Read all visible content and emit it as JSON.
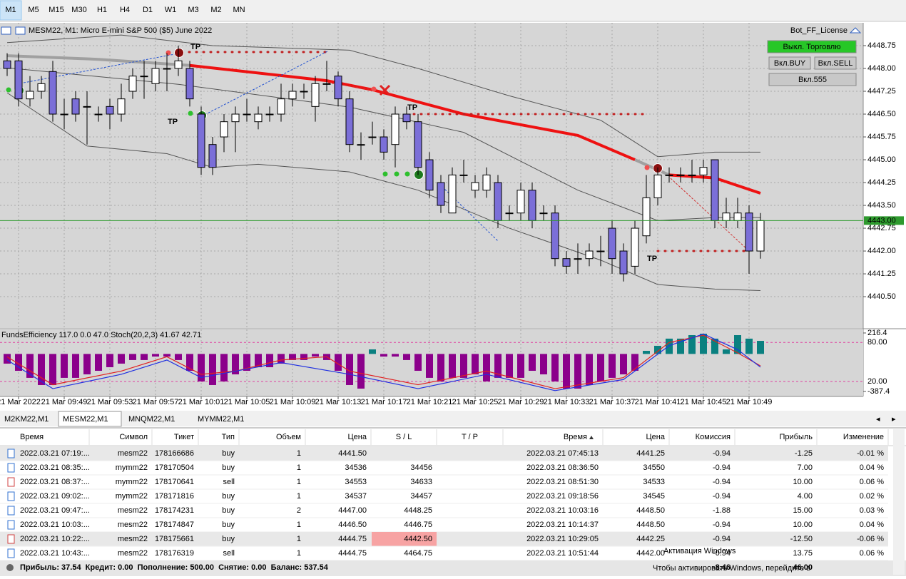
{
  "toolbar": {
    "timeframes": [
      "M1",
      "M5",
      "M15",
      "M30",
      "H1",
      "H4",
      "D1",
      "W1",
      "M3",
      "M2",
      "MN"
    ],
    "active": 0
  },
  "chart_header": {
    "title": "MESM22, M1:  Micro E-mini S&P 500 ($5) June 2022",
    "license": "Bot_FF_License"
  },
  "buttons": [
    "Выкл. Торговлю",
    "Вкл.BUY",
    "Вкл.SELL",
    "Вкл.555"
  ],
  "chart_data": [
    {
      "type": "candlestick",
      "categories": [
        null,
        "21 Mar 2022",
        null,
        null,
        null,
        "21 Mar 09:49",
        null,
        null,
        null,
        "21 Mar 09:53",
        null,
        null,
        null,
        "21 Mar 09:57",
        null,
        null,
        null,
        "21 Mar 10:01",
        null,
        null,
        null,
        "21 Mar 10:05",
        null,
        null,
        null,
        "21 Mar 10:09",
        null,
        null,
        null,
        "21 Mar 10:13",
        null,
        null,
        null,
        "21 Mar 10:17",
        null,
        null,
        null,
        "21 Mar 10:21",
        null,
        null,
        null,
        "21 Mar 10:25",
        null,
        null,
        null,
        "21 Mar 10:29",
        null,
        null,
        null,
        "21 Mar 10:33",
        null,
        null,
        null,
        "21 Mar 10:37",
        null,
        null,
        null,
        "21 Mar 10:41",
        null,
        null,
        null,
        "21 Mar 10:45",
        null,
        null,
        null,
        "21 Mar 10:49",
        null
      ],
      "open": [
        4448.25,
        4448.25,
        4447.0,
        4447.25,
        4447.9,
        4446.5,
        4447.0,
        4446.75,
        4446.5,
        4446.75,
        4446.5,
        4447.25,
        4447.75,
        4447.5,
        4448.0,
        4448.0,
        4448.0,
        4446.5,
        4445.5,
        4445.75,
        4446.25,
        4446.5,
        4446.25,
        4446.5,
        4446.5,
        4447.0,
        4447.25,
        4446.75,
        4447.5,
        4447.75,
        4447.0,
        4445.5,
        4445.75,
        4445.75,
        4445.5,
        4446.5,
        4446.25,
        4445.0,
        4444.25,
        4443.25,
        4444.5,
        4444.0,
        4444.0,
        4444.25,
        4443.25,
        4443.25,
        4444.0,
        4443.25,
        4443.25,
        4441.75,
        4441.75,
        4441.75,
        4442.0,
        4442.75,
        4442.0,
        4441.5,
        4442.5,
        4443.75,
        4444.5,
        4444.5,
        4444.5,
        4444.5,
        4445.0,
        4443.0,
        4443.0,
        4443.25,
        4442.0
      ],
      "high": [
        4448.5,
        4448.5,
        4447.75,
        4447.75,
        4448.25,
        4447.0,
        4447.25,
        4447.25,
        4446.75,
        4447.0,
        4447.5,
        4448.0,
        4448.25,
        4448.25,
        4448.5,
        4448.75,
        4448.25,
        4446.75,
        4445.75,
        4446.5,
        4446.75,
        4447.0,
        4446.75,
        4446.75,
        4447.5,
        4447.5,
        4447.5,
        4447.75,
        4448.25,
        4447.9,
        4447.25,
        4445.9,
        4446.25,
        4446.0,
        4446.75,
        4446.75,
        4446.5,
        4445.25,
        4444.5,
        4444.75,
        4445.0,
        4444.5,
        4444.75,
        4444.5,
        4443.5,
        4444.25,
        4444.25,
        4443.5,
        4443.5,
        4442.0,
        4442.25,
        4442.25,
        4442.5,
        4443.0,
        4442.25,
        4443.0,
        4444.5,
        4444.75,
        4444.75,
        4444.75,
        4445.0,
        4445.0,
        4445.0,
        4443.75,
        4443.75,
        4443.5,
        4443.25
      ],
      "low": [
        4447.75,
        4446.75,
        4446.75,
        4447.0,
        4446.25,
        4446.0,
        4446.25,
        4445.5,
        4446.25,
        4446.0,
        4446.25,
        4447.0,
        4447.0,
        4447.25,
        4447.25,
        4447.75,
        4446.75,
        4444.5,
        4444.5,
        4445.25,
        4445.25,
        4446.25,
        4446.0,
        4446.25,
        4446.25,
        4446.75,
        4447.0,
        4446.25,
        4447.25,
        4446.75,
        4445.25,
        4445.0,
        4445.5,
        4445.0,
        4444.75,
        4446.0,
        4444.5,
        4443.75,
        4443.25,
        4443.25,
        4444.25,
        4443.75,
        4443.75,
        4442.75,
        4443.0,
        4443.0,
        4442.75,
        4443.0,
        4441.5,
        4441.25,
        4441.25,
        4441.5,
        4441.5,
        4441.25,
        4441.0,
        4441.25,
        4442.25,
        4443.5,
        4444.25,
        4444.25,
        4444.25,
        4444.25,
        4442.75,
        4442.75,
        4442.75,
        4441.25,
        4441.75
      ],
      "close": [
        4448.0,
        4447.0,
        4447.25,
        4447.5,
        4446.5,
        4446.5,
        4446.5,
        4446.75,
        4446.5,
        4446.5,
        4447.0,
        4447.75,
        4447.75,
        4448.0,
        4448.0,
        4448.25,
        4447.0,
        4444.75,
        4444.75,
        4446.25,
        4446.5,
        4446.5,
        4446.5,
        4446.5,
        4447.0,
        4447.25,
        4447.25,
        4447.5,
        4447.5,
        4447.0,
        4445.5,
        4445.5,
        4445.75,
        4445.25,
        4446.5,
        4446.25,
        4444.75,
        4444.0,
        4443.5,
        4444.5,
        4444.5,
        4444.25,
        4444.5,
        4443.0,
        4443.25,
        4444.0,
        4443.0,
        4443.25,
        4441.75,
        4441.5,
        4441.75,
        4442.0,
        4442.0,
        4441.75,
        4441.25,
        4442.75,
        4443.75,
        4444.5,
        4444.5,
        4444.5,
        4444.5,
        4444.75,
        4443.0,
        4443.25,
        4443.25,
        4442.0,
        4443.0
      ],
      "down_color": "#7b6fd8",
      "up_color": "#ffffff",
      "ylim": [
        4439.47,
        4449.5
      ],
      "yticks": [
        4448.75,
        {
          "value": 4448.0,
          "label": "4448.00"
        },
        4447.25,
        {
          "value": 4446.5,
          "label": "4446.50"
        },
        4445.75,
        {
          "value": 4445.0,
          "label": "4445.00"
        },
        4444.25,
        {
          "value": 4443.5,
          "label": "4443.50"
        },
        4442.75,
        {
          "value": 4442.0,
          "label": "4442.00"
        },
        4441.25,
        {
          "value": 4440.5,
          "label": "4440.50"
        }
      ],
      "grid": true,
      "lines": [
        {
          "color": "#a0a0a0",
          "width": 4,
          "x": [
            0,
            8,
            16
          ],
          "values": [
            4448.42,
            4448.3,
            4448.1
          ]
        },
        {
          "color": "#ee1111",
          "width": 4,
          "x": [
            16,
            28,
            32,
            40,
            50,
            55
          ],
          "values": [
            4448.1,
            4447.6,
            4447.3,
            4446.5,
            4445.8,
            4445.0
          ]
        },
        {
          "color": "#a0a0a0",
          "width": 4,
          "x": [
            55,
            58
          ],
          "values": [
            4445.0,
            4444.5
          ]
        },
        {
          "color": "#ee1111",
          "width": 4,
          "x": [
            58,
            62,
            66
          ],
          "values": [
            4444.5,
            4444.4,
            4443.9
          ]
        },
        {
          "color": "#555555",
          "width": 1,
          "x": [
            0,
            10,
            18,
            30,
            36,
            44,
            52,
            57,
            62,
            66
          ],
          "values": [
            4448.85,
            4449.1,
            4448.75,
            4448.6,
            4448.0,
            4447.1,
            4446.3,
            4445.1,
            4445.25,
            4445.25
          ]
        },
        {
          "color": "#555555",
          "width": 1,
          "x": [
            0,
            15,
            30,
            40,
            50,
            57,
            62,
            66
          ],
          "values": [
            4448.02,
            4447.48,
            4446.73,
            4445.9,
            4444.0,
            4443.0,
            4443.1,
            4443.1
          ]
        },
        {
          "color": "#555555",
          "width": 1,
          "x": [
            0,
            7,
            14,
            18,
            22,
            30,
            36,
            44,
            52,
            57,
            62,
            66
          ],
          "values": [
            4447.2,
            4445.45,
            4445.2,
            4444.75,
            4444.85,
            4444.6,
            4444.0,
            4442.75,
            4441.7,
            4440.9,
            4440.75,
            4440.7
          ]
        }
      ],
      "current_price": {
        "value": 4443.0,
        "label": "4443.00",
        "color": "#2e9a2e"
      },
      "annotations": [
        "TP",
        "TP",
        "TP",
        "TP"
      ]
    },
    {
      "type": "bar",
      "title": "FundsEfficiency 117.0 0.0 47.0 Stoch(20,2,3) 41.67 42.71",
      "values": [
        -100,
        -174,
        -247,
        -321,
        -321,
        -247,
        -247,
        -211,
        -174,
        -137,
        -100,
        -63,
        -63,
        -27,
        -27,
        -63,
        -174,
        -284,
        -321,
        -284,
        -211,
        -174,
        -137,
        -137,
        -100,
        -63,
        -63,
        -27,
        -63,
        -174,
        -321,
        -358,
        47,
        -27,
        -27,
        -63,
        -174,
        -247,
        -284,
        -247,
        -247,
        -211,
        -284,
        -247,
        -247,
        -247,
        -174,
        -211,
        -284,
        -358,
        -358,
        -321,
        -284,
        -247,
        -211,
        -174,
        32,
        84,
        158,
        158,
        194,
        209,
        158,
        47,
        194,
        158,
        135
      ],
      "color": "#8b008b",
      "up_color": "#0a8080",
      "ylim": [
        -439,
        253
      ],
      "yticks": [
        216.4,
        -387.4
      ],
      "y2lim": [
        -3,
        100
      ],
      "y2ticks": [
        {
          "value": 80,
          "label": "80.00"
        },
        {
          "value": 20,
          "label": "20.00"
        }
      ],
      "series": [
        {
          "color": "#e02020",
          "axis": "y2",
          "x": [
            0,
            4,
            10,
            14,
            17,
            20,
            24,
            28,
            30,
            36,
            42,
            48,
            54,
            58,
            61,
            64,
            66
          ],
          "values": [
            58,
            15,
            36,
            58,
            31,
            36,
            53,
            58,
            36,
            15,
            36,
            9,
            26,
            80,
            91,
            64,
            44
          ]
        },
        {
          "color": "#2030e0",
          "axis": "y2",
          "x": [
            0,
            4,
            10,
            14,
            17,
            24,
            30,
            36,
            42,
            48,
            54,
            58,
            61,
            64,
            66
          ],
          "values": [
            53,
            9,
            31,
            53,
            26,
            49,
            31,
            9,
            31,
            6,
            23,
            75,
            93,
            69,
            42
          ]
        }
      ]
    }
  ],
  "tabs": {
    "items": [
      "M2KM22,M1",
      "MESM22,M1",
      "MNQM22,M1",
      "MYMM22,M1"
    ],
    "active": 1
  },
  "table": {
    "columns": [
      "Время",
      "Символ",
      "Тикет",
      "Тип",
      "Объем",
      "Цена",
      "S / L",
      "T / P",
      "Время",
      "Цена",
      "Комиссия",
      "Прибыль",
      "Изменение"
    ],
    "rows": [
      [
        "2022.03.21 07:19:...",
        "mesm22",
        "178166686",
        "buy",
        "1",
        "4441.50",
        null,
        null,
        "2022.03.21 07:45:13",
        "4441.25",
        "-0.94",
        "-1.25",
        "-0.01 %"
      ],
      [
        "2022.03.21 08:35:...",
        "mymm22",
        "178170504",
        "buy",
        "1",
        "34536",
        "34456",
        null,
        "2022.03.21 08:36:50",
        "34550",
        "-0.94",
        "7.00",
        "0.04 %"
      ],
      [
        "2022.03.21 08:37:...",
        "mymm22",
        "178170641",
        "sell",
        "1",
        "34553",
        "34633",
        null,
        "2022.03.21 08:51:30",
        "34533",
        "-0.94",
        "10.00",
        "0.06 %"
      ],
      [
        "2022.03.21 09:02:...",
        "mymm22",
        "178171816",
        "buy",
        "1",
        "34537",
        "34457",
        null,
        "2022.03.21 09:18:56",
        "34545",
        "-0.94",
        "4.00",
        "0.02 %"
      ],
      [
        "2022.03.21 09:47:...",
        "mesm22",
        "178174231",
        "buy",
        "2",
        "4447.00",
        "4448.25",
        null,
        "2022.03.21 10:03:16",
        "4448.50",
        "-1.88",
        "15.00",
        "0.03 %"
      ],
      [
        "2022.03.21 10:03:...",
        "mesm22",
        "178174847",
        "buy",
        "1",
        "4446.50",
        "4446.75",
        null,
        "2022.03.21 10:14:37",
        "4448.50",
        "-0.94",
        "10.00",
        "0.04 %"
      ],
      [
        "2022.03.21 10:22:...",
        "mesm22",
        "178175661",
        "buy",
        "1",
        "4444.75",
        "4442.50",
        null,
        "2022.03.21 10:29:05",
        "4442.25",
        "-0.94",
        "-12.50",
        "-0.06 %"
      ],
      [
        "2022.03.21 10:43:...",
        "mesm22",
        "178176319",
        "sell",
        "1",
        "4444.75",
        "4464.75",
        null,
        "2022.03.21 10:51:44",
        "4442.00",
        "-0.94",
        "13.75",
        "0.06 %"
      ]
    ]
  },
  "footer": {
    "summary": "Прибыль: 37.54  Кредит: 0.00  Пополнение: 500.00  Снятие: 0.00  Баланс: 537.54",
    "commission_total": "-8.46",
    "profit_total": "46.00"
  },
  "watermark": {
    "title": "Активация Windows",
    "text": "Чтобы активировать Windows, перейдите в"
  }
}
